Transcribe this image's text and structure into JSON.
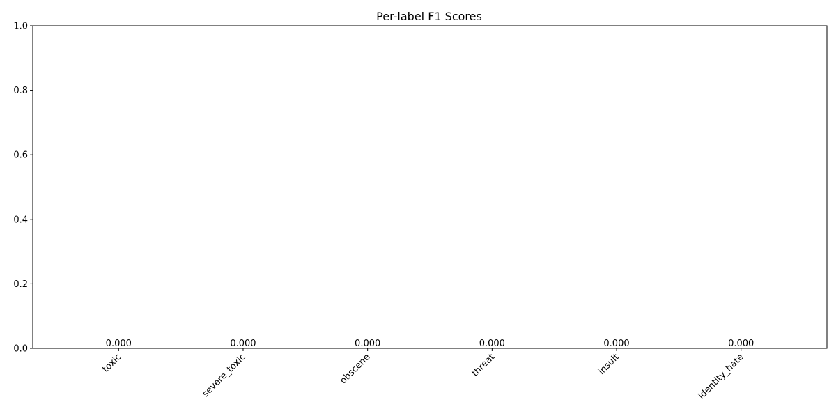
{
  "chart_data": {
    "type": "bar",
    "title": "Per-label F1 Scores",
    "xlabel": "",
    "ylabel": "",
    "categories": [
      "toxic",
      "severe_toxic",
      "obscene",
      "threat",
      "insult",
      "identity_hate"
    ],
    "values": [
      0.0,
      0.0,
      0.0,
      0.0,
      0.0,
      0.0
    ],
    "data_labels": [
      "0.000",
      "0.000",
      "0.000",
      "0.000",
      "0.000",
      "0.000"
    ],
    "ylim": [
      0,
      1.0
    ],
    "yticks": [
      0.0,
      0.2,
      0.4,
      0.6,
      0.8,
      1.0
    ],
    "ytick_labels": [
      "0.0",
      "0.2",
      "0.4",
      "0.6",
      "0.8",
      "1.0"
    ],
    "grid": false,
    "bar_color": "#1f77b4",
    "xtick_rotation_deg": 45
  }
}
